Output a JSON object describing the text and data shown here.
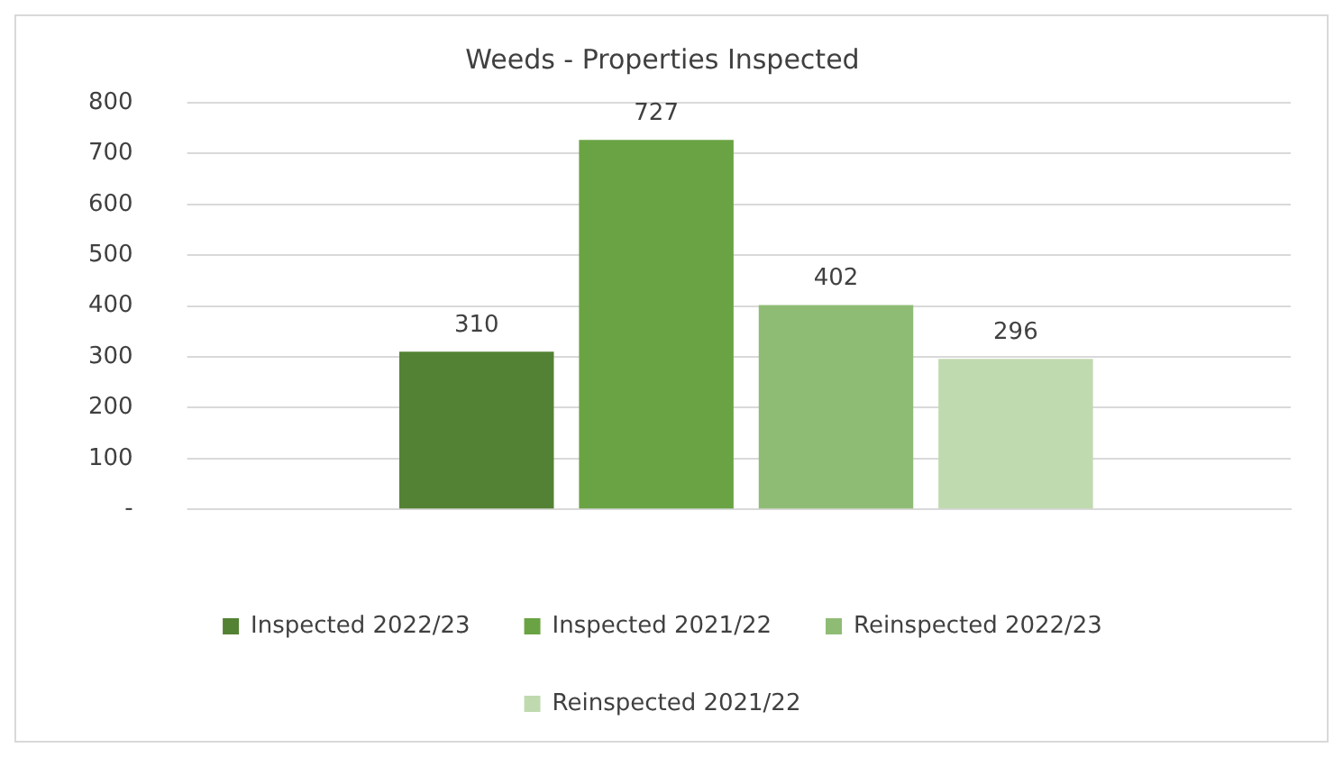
{
  "chart_data": {
    "type": "bar",
    "title": "Weeds - Properties Inspected",
    "categories": [
      null
    ],
    "series": [
      {
        "name": "Inspected 2022/23",
        "color": "#548235",
        "values": [
          310
        ]
      },
      {
        "name": "Inspected 2021/22",
        "color": "#6aa343",
        "values": [
          727
        ]
      },
      {
        "name": "Reinspected 2022/23",
        "color": "#8fbc75",
        "values": [
          402
        ]
      },
      {
        "name": "Reinspected 2021/22",
        "color": "#c0dab0",
        "values": [
          296
        ]
      }
    ],
    "ylim": [
      0,
      800
    ],
    "yticks": [
      {
        "value": 0,
        "label": "-"
      },
      100,
      200,
      300,
      400,
      500,
      600,
      700,
      800
    ],
    "grid": "y",
    "legend": "bottom",
    "data_labels": true
  }
}
